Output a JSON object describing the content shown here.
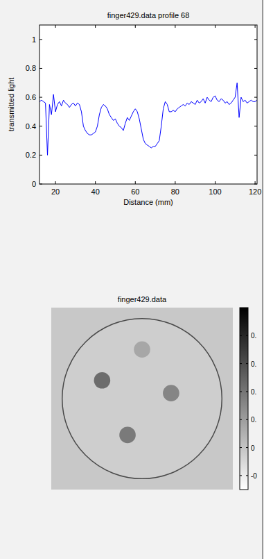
{
  "chart_data": [
    {
      "type": "line",
      "title": "finger429.data profile 68",
      "x_label": "Distance (mm)",
      "y_label": "transmitted light",
      "color": "#0000ff",
      "grid": false,
      "xlim": [
        12,
        121
      ],
      "ylim": [
        0,
        1.1
      ],
      "xticks": [
        20,
        40,
        60,
        80,
        100,
        120
      ],
      "yticks": [
        0,
        0.2,
        0.4,
        0.6,
        0.8,
        1
      ],
      "x": [
        12,
        13,
        14,
        15,
        16,
        17,
        18,
        19,
        20,
        21,
        22,
        23,
        24,
        25,
        26,
        27,
        28,
        29,
        30,
        31,
        32,
        33,
        34,
        35,
        36,
        37,
        38,
        39,
        40,
        41,
        42,
        43,
        44,
        45,
        46,
        47,
        48,
        49,
        50,
        51,
        52,
        53,
        54,
        55,
        56,
        57,
        58,
        59,
        60,
        61,
        62,
        63,
        64,
        65,
        66,
        67,
        68,
        69,
        70,
        71,
        72,
        73,
        74,
        75,
        76,
        77,
        78,
        79,
        80,
        81,
        82,
        83,
        84,
        85,
        86,
        87,
        88,
        89,
        90,
        91,
        92,
        93,
        94,
        95,
        96,
        97,
        98,
        99,
        100,
        101,
        102,
        103,
        104,
        105,
        106,
        107,
        108,
        109,
        110,
        111,
        112,
        113,
        114,
        115,
        116,
        117,
        118,
        119,
        120,
        121
      ],
      "values": [
        0.57,
        0.58,
        0.57,
        0.56,
        0.2,
        0.55,
        0.48,
        0.62,
        0.5,
        0.55,
        0.57,
        0.54,
        0.58,
        0.56,
        0.55,
        0.53,
        0.55,
        0.56,
        0.54,
        0.56,
        0.55,
        0.5,
        0.4,
        0.37,
        0.35,
        0.34,
        0.34,
        0.35,
        0.36,
        0.4,
        0.48,
        0.53,
        0.55,
        0.54,
        0.52,
        0.48,
        0.46,
        0.44,
        0.45,
        0.42,
        0.4,
        0.39,
        0.37,
        0.42,
        0.46,
        0.44,
        0.47,
        0.5,
        0.52,
        0.5,
        0.45,
        0.38,
        0.31,
        0.28,
        0.27,
        0.26,
        0.25,
        0.26,
        0.26,
        0.28,
        0.3,
        0.4,
        0.52,
        0.57,
        0.55,
        0.5,
        0.5,
        0.51,
        0.5,
        0.52,
        0.53,
        0.54,
        0.55,
        0.54,
        0.56,
        0.55,
        0.57,
        0.56,
        0.55,
        0.58,
        0.56,
        0.57,
        0.59,
        0.56,
        0.6,
        0.58,
        0.57,
        0.6,
        0.61,
        0.58,
        0.57,
        0.59,
        0.58,
        0.56,
        0.57,
        0.55,
        0.56,
        0.58,
        0.6,
        0.7,
        0.46,
        0.6,
        0.57,
        0.58,
        0.56,
        0.57,
        0.58,
        0.57,
        0.57,
        0.58
      ]
    },
    {
      "type": "image",
      "title": "finger429.data",
      "colorbar_range": [
        -0.3,
        1.0
      ],
      "colorbar_ticks": [
        {
          "value": 0.8,
          "label": "0."
        },
        {
          "value": 0.6,
          "label": "0."
        },
        {
          "value": 0.4,
          "label": "0."
        },
        {
          "value": 0.2,
          "label": "0."
        },
        {
          "value": 0,
          "label": "0"
        },
        {
          "value": -0.2,
          "label": "-0"
        }
      ],
      "background": -0.02,
      "disk": {
        "x": 0.5,
        "y": 0.5,
        "r": 0.44,
        "value": -0.05
      },
      "spots": [
        {
          "x": 0.28,
          "y": 0.4,
          "r": 0.045,
          "value": 0.45
        },
        {
          "x": 0.42,
          "y": 0.7,
          "r": 0.045,
          "value": 0.38
        },
        {
          "x": 0.66,
          "y": 0.47,
          "r": 0.045,
          "value": 0.32
        },
        {
          "x": 0.5,
          "y": 0.23,
          "r": 0.045,
          "value": 0.15
        }
      ]
    }
  ]
}
